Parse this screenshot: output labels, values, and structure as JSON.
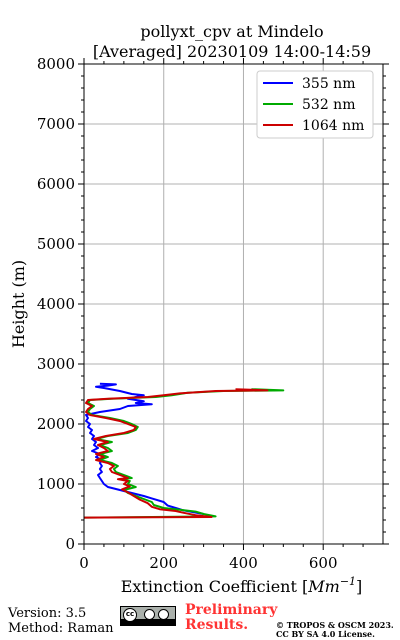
{
  "chart_data": {
    "type": "line",
    "title": [
      "pollyxt_cpv at Mindelo",
      "[Averaged] 20230109 14:00-14:59"
    ],
    "xlabel": "Extinction Coefficient [Mm⁻¹]",
    "xlabel_main": "Extinction Coefficient [",
    "xlabel_unit": "Mm",
    "xlabel_exp": "−1",
    "xlabel_end": "]",
    "ylabel": "Height (m)",
    "xlim": [
      0,
      750
    ],
    "ylim": [
      0,
      8000
    ],
    "xticks": [
      0,
      200,
      400,
      600
    ],
    "yticks": [
      0,
      1000,
      2000,
      3000,
      4000,
      5000,
      6000,
      7000,
      8000
    ],
    "xtick_labels": [
      "0",
      "200",
      "400",
      "600"
    ],
    "ytick_labels": [
      "0",
      "1000",
      "2000",
      "3000",
      "4000",
      "5000",
      "6000",
      "7000",
      "8000"
    ],
    "grid": true,
    "legend_position": "top-right",
    "series": [
      {
        "name": "355 nm",
        "color": "#0000ff",
        "points": [
          [
            300,
            500
          ],
          [
            250,
            560
          ],
          [
            230,
            600
          ],
          [
            210,
            640
          ],
          [
            200,
            700
          ],
          [
            170,
            760
          ],
          [
            150,
            800
          ],
          [
            120,
            850
          ],
          [
            90,
            900
          ],
          [
            60,
            950
          ],
          [
            50,
            1000
          ],
          [
            45,
            1050
          ],
          [
            40,
            1100
          ],
          [
            35,
            1150
          ],
          [
            45,
            1200
          ],
          [
            40,
            1250
          ],
          [
            45,
            1300
          ],
          [
            40,
            1350
          ],
          [
            45,
            1400
          ],
          [
            30,
            1450
          ],
          [
            40,
            1500
          ],
          [
            20,
            1550
          ],
          [
            35,
            1600
          ],
          [
            25,
            1650
          ],
          [
            30,
            1700
          ],
          [
            20,
            1750
          ],
          [
            25,
            1800
          ],
          [
            15,
            1850
          ],
          [
            20,
            1900
          ],
          [
            10,
            1950
          ],
          [
            15,
            2000
          ],
          [
            5,
            2050
          ],
          [
            10,
            2100
          ],
          [
            5,
            2150
          ],
          [
            40,
            2200
          ],
          [
            90,
            2250
          ],
          [
            110,
            2300
          ],
          [
            170,
            2330
          ],
          [
            130,
            2350
          ],
          [
            150,
            2380
          ],
          [
            110,
            2420
          ],
          [
            130,
            2450
          ],
          [
            150,
            2480
          ],
          [
            120,
            2500
          ],
          [
            90,
            2550
          ],
          [
            50,
            2600
          ],
          [
            30,
            2620
          ],
          [
            60,
            2640
          ],
          [
            80,
            2660
          ],
          [
            40,
            2670
          ]
        ]
      },
      {
        "name": "532 nm",
        "color": "#00aa00",
        "points": [
          [
            0,
            440
          ],
          [
            330,
            460
          ],
          [
            300,
            500
          ],
          [
            280,
            540
          ],
          [
            240,
            570
          ],
          [
            200,
            600
          ],
          [
            175,
            650
          ],
          [
            170,
            700
          ],
          [
            150,
            750
          ],
          [
            130,
            800
          ],
          [
            110,
            850
          ],
          [
            100,
            900
          ],
          [
            130,
            950
          ],
          [
            110,
            1000
          ],
          [
            115,
            1050
          ],
          [
            90,
            1080
          ],
          [
            120,
            1100
          ],
          [
            100,
            1150
          ],
          [
            80,
            1200
          ],
          [
            75,
            1250
          ],
          [
            85,
            1300
          ],
          [
            70,
            1350
          ],
          [
            40,
            1400
          ],
          [
            60,
            1450
          ],
          [
            40,
            1500
          ],
          [
            70,
            1550
          ],
          [
            60,
            1600
          ],
          [
            40,
            1650
          ],
          [
            70,
            1700
          ],
          [
            30,
            1750
          ],
          [
            60,
            1800
          ],
          [
            110,
            1850
          ],
          [
            130,
            1900
          ],
          [
            135,
            1950
          ],
          [
            120,
            2000
          ],
          [
            100,
            2050
          ],
          [
            65,
            2100
          ],
          [
            20,
            2150
          ],
          [
            10,
            2200
          ],
          [
            15,
            2250
          ],
          [
            25,
            2300
          ],
          [
            10,
            2350
          ],
          [
            15,
            2400
          ],
          [
            70,
            2420
          ],
          [
            180,
            2450
          ],
          [
            220,
            2480
          ],
          [
            260,
            2520
          ],
          [
            350,
            2550
          ],
          [
            500,
            2560
          ],
          [
            420,
            2580
          ]
        ]
      },
      {
        "name": "1064 nm",
        "color": "#cc0000",
        "points": [
          [
            0,
            440
          ],
          [
            320,
            450
          ],
          [
            280,
            480
          ],
          [
            250,
            520
          ],
          [
            230,
            550
          ],
          [
            190,
            580
          ],
          [
            170,
            620
          ],
          [
            160,
            680
          ],
          [
            140,
            740
          ],
          [
            125,
            800
          ],
          [
            110,
            860
          ],
          [
            95,
            910
          ],
          [
            115,
            960
          ],
          [
            100,
            1000
          ],
          [
            110,
            1050
          ],
          [
            85,
            1080
          ],
          [
            110,
            1100
          ],
          [
            90,
            1150
          ],
          [
            70,
            1200
          ],
          [
            65,
            1250
          ],
          [
            75,
            1300
          ],
          [
            60,
            1350
          ],
          [
            30,
            1400
          ],
          [
            50,
            1450
          ],
          [
            30,
            1500
          ],
          [
            60,
            1550
          ],
          [
            50,
            1600
          ],
          [
            35,
            1650
          ],
          [
            60,
            1700
          ],
          [
            25,
            1750
          ],
          [
            55,
            1800
          ],
          [
            100,
            1850
          ],
          [
            125,
            1900
          ],
          [
            130,
            1950
          ],
          [
            110,
            2000
          ],
          [
            90,
            2050
          ],
          [
            55,
            2100
          ],
          [
            15,
            2150
          ],
          [
            5,
            2200
          ],
          [
            10,
            2250
          ],
          [
            20,
            2300
          ],
          [
            5,
            2350
          ],
          [
            10,
            2400
          ],
          [
            60,
            2420
          ],
          [
            160,
            2450
          ],
          [
            200,
            2480
          ],
          [
            240,
            2510
          ],
          [
            330,
            2550
          ],
          [
            460,
            2560
          ],
          [
            380,
            2580
          ]
        ]
      }
    ]
  },
  "footer": {
    "version": "Version: 3.5",
    "method": "Method: Raman",
    "license_badge": "cc-by-sa-badge",
    "preliminary_line1": "Preliminary",
    "preliminary_line2": "Results.",
    "copyright_line1": "© TROPOS & OSCM 2023.",
    "copyright_line2": "CC BY SA 4.0 License.",
    "preliminary_color": "#ff3333"
  }
}
